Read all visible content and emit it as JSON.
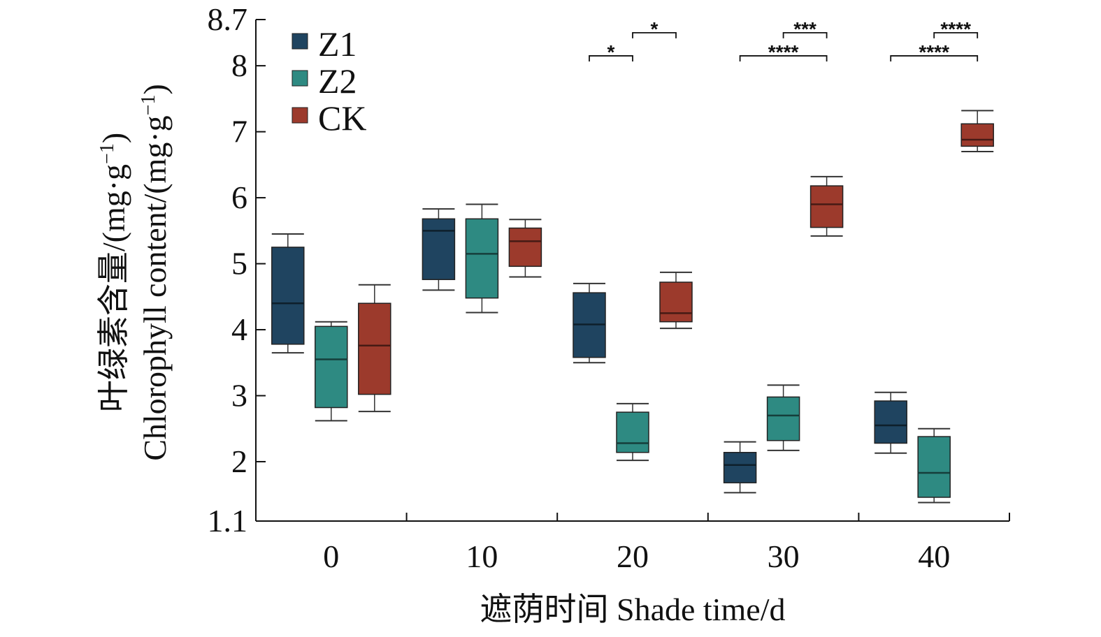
{
  "chart_data": {
    "type": "box",
    "xlabel": "遮荫时间 Shade time/d",
    "ylabel_cn": "叶绿素含量/(mg·g",
    "ylabel_en": "Chlorophyll content/(mg·g",
    "ylabel_sup": "−1",
    "ylabel_close": ")",
    "ylim": [
      1.1,
      8.7
    ],
    "yticks": [
      "1.1",
      "2",
      "3",
      "4",
      "5",
      "6",
      "7",
      "8",
      "8.7"
    ],
    "ytick_values": [
      1.1,
      2,
      3,
      4,
      5,
      6,
      7,
      8,
      8.7
    ],
    "categories": [
      "0",
      "10",
      "20",
      "30",
      "40"
    ],
    "series": [
      {
        "name": "Z1",
        "color": "#1f4460",
        "boxes": [
          {
            "min": 3.65,
            "q1": 3.78,
            "median": 4.4,
            "q3": 5.25,
            "max": 5.45
          },
          {
            "min": 4.6,
            "q1": 4.76,
            "median": 5.5,
            "q3": 5.68,
            "max": 5.83
          },
          {
            "min": 3.5,
            "q1": 3.58,
            "median": 4.08,
            "q3": 4.56,
            "max": 4.7
          },
          {
            "min": 1.53,
            "q1": 1.68,
            "median": 1.95,
            "q3": 2.14,
            "max": 2.3
          },
          {
            "min": 2.13,
            "q1": 2.28,
            "median": 2.55,
            "q3": 2.92,
            "max": 3.05
          }
        ]
      },
      {
        "name": "Z2",
        "color": "#2e8a82",
        "boxes": [
          {
            "min": 2.62,
            "q1": 2.82,
            "median": 3.55,
            "q3": 4.05,
            "max": 4.12
          },
          {
            "min": 4.26,
            "q1": 4.48,
            "median": 5.15,
            "q3": 5.68,
            "max": 5.9
          },
          {
            "min": 2.02,
            "q1": 2.14,
            "median": 2.28,
            "q3": 2.75,
            "max": 2.88
          },
          {
            "min": 2.17,
            "q1": 2.32,
            "median": 2.7,
            "q3": 2.98,
            "max": 3.16
          },
          {
            "min": 1.38,
            "q1": 1.46,
            "median": 1.83,
            "q3": 2.38,
            "max": 2.5
          }
        ]
      },
      {
        "name": "CK",
        "color": "#9c3a2c",
        "boxes": [
          {
            "min": 2.76,
            "q1": 3.02,
            "median": 3.76,
            "q3": 4.4,
            "max": 4.68
          },
          {
            "min": 4.8,
            "q1": 4.96,
            "median": 5.34,
            "q3": 5.54,
            "max": 5.67
          },
          {
            "min": 4.02,
            "q1": 4.12,
            "median": 4.25,
            "q3": 4.72,
            "max": 4.87
          },
          {
            "min": 5.42,
            "q1": 5.55,
            "median": 5.9,
            "q3": 6.18,
            "max": 6.32
          },
          {
            "min": 6.7,
            "q1": 6.78,
            "median": 6.88,
            "q3": 7.12,
            "max": 7.32
          }
        ]
      }
    ],
    "significance": [
      {
        "category": "20",
        "from": "Z1",
        "to": "Z2",
        "label": "*",
        "y": 8.15
      },
      {
        "category": "20",
        "from": "Z2",
        "to": "CK",
        "label": "*",
        "y": 8.5
      },
      {
        "category": "30",
        "from": "Z1",
        "to": "CK",
        "label": "****",
        "y": 8.15
      },
      {
        "category": "30",
        "from": "Z2",
        "to": "CK",
        "label": "***",
        "y": 8.5
      },
      {
        "category": "40",
        "from": "Z1",
        "to": "CK",
        "label": "****",
        "y": 8.15
      },
      {
        "category": "40",
        "from": "Z2",
        "to": "CK",
        "label": "****",
        "y": 8.5
      }
    ],
    "legend_position": "top-left",
    "grid": false
  }
}
